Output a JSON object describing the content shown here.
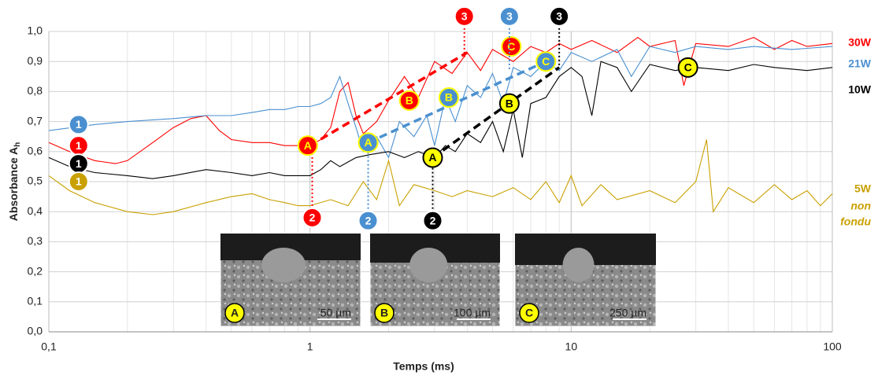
{
  "chart_data": {
    "type": "line",
    "xlabel": "Temps (ms)",
    "ylabel": {
      "text": "Absorbance A",
      "subscript": "h"
    },
    "log_x": true,
    "grid": true,
    "xlim": [
      0.1,
      100
    ],
    "ylim": [
      0,
      1
    ],
    "xticks": [
      {
        "value": 0.1,
        "label": "0,1"
      },
      1,
      10,
      100
    ],
    "x_minor_ticks": [
      0.2,
      0.3,
      0.4,
      0.5,
      0.6,
      0.7,
      0.8,
      0.9,
      2,
      3,
      4,
      5,
      6,
      7,
      8,
      9,
      20,
      30,
      40,
      50,
      60,
      70,
      80,
      90
    ],
    "yticks": [
      {
        "value": 0,
        "label": "0,0"
      },
      {
        "value": 0.1,
        "label": "0,1"
      },
      {
        "value": 0.2,
        "label": "0,2"
      },
      {
        "value": 0.3,
        "label": "0,3"
      },
      {
        "value": 0.4,
        "label": "0,4"
      },
      {
        "value": 0.5,
        "label": "0,5"
      },
      {
        "value": 0.6,
        "label": "0,6"
      },
      {
        "value": 0.7,
        "label": "0,7"
      },
      {
        "value": 0.8,
        "label": "0,8"
      },
      {
        "value": 0.9,
        "label": "0,9"
      },
      {
        "value": 1,
        "label": "1,0"
      }
    ],
    "series": [
      {
        "name": "30W",
        "color": "#ff0000",
        "x": [
          0.1,
          0.12,
          0.15,
          0.18,
          0.2,
          0.25,
          0.3,
          0.35,
          0.4,
          0.45,
          0.5,
          0.6,
          0.7,
          0.8,
          0.9,
          1.0,
          1.1,
          1.2,
          1.3,
          1.4,
          1.5,
          1.6,
          1.8,
          2.0,
          2.3,
          2.6,
          3.0,
          3.5,
          4.0,
          4.5,
          5.0,
          6,
          7,
          8,
          9,
          10,
          12,
          15,
          18,
          20,
          25,
          27,
          30,
          40,
          50,
          60,
          70,
          80,
          100
        ],
        "values": [
          0.63,
          0.6,
          0.57,
          0.56,
          0.57,
          0.63,
          0.68,
          0.71,
          0.72,
          0.67,
          0.64,
          0.63,
          0.63,
          0.62,
          0.62,
          0.62,
          0.64,
          0.68,
          0.8,
          0.83,
          0.72,
          0.66,
          0.7,
          0.77,
          0.85,
          0.78,
          0.9,
          0.86,
          0.93,
          0.87,
          0.94,
          0.9,
          0.95,
          0.93,
          0.96,
          0.94,
          0.97,
          0.93,
          0.98,
          0.95,
          0.97,
          0.82,
          0.96,
          0.95,
          0.98,
          0.94,
          0.97,
          0.95,
          0.96
        ],
        "trend_x": [
          1.0,
          4.0
        ],
        "trend_y": [
          0.62,
          0.93
        ]
      },
      {
        "name": "21W",
        "color": "#4a90d0",
        "x": [
          0.1,
          0.15,
          0.2,
          0.3,
          0.4,
          0.5,
          0.6,
          0.7,
          0.8,
          0.9,
          1.0,
          1.1,
          1.2,
          1.3,
          1.4,
          1.5,
          1.6,
          1.7,
          1.8,
          2.0,
          2.2,
          2.5,
          2.8,
          3.0,
          3.3,
          3.6,
          4.0,
          4.5,
          5,
          5.5,
          6,
          7,
          8,
          9,
          10,
          12,
          15,
          17,
          20,
          25,
          30,
          40,
          50,
          70,
          100
        ],
        "values": [
          0.67,
          0.69,
          0.7,
          0.71,
          0.72,
          0.72,
          0.73,
          0.74,
          0.74,
          0.75,
          0.75,
          0.76,
          0.78,
          0.85,
          0.76,
          0.68,
          0.6,
          0.62,
          0.65,
          0.58,
          0.7,
          0.65,
          0.72,
          0.62,
          0.78,
          0.7,
          0.82,
          0.78,
          0.86,
          0.76,
          0.88,
          0.85,
          0.9,
          0.87,
          0.93,
          0.9,
          0.94,
          0.85,
          0.95,
          0.93,
          0.95,
          0.94,
          0.95,
          0.94,
          0.95
        ],
        "trend_x": [
          1.67,
          8
        ],
        "trend_y": [
          0.63,
          0.9
        ]
      },
      {
        "name": "10W",
        "color": "#000000",
        "x": [
          0.1,
          0.12,
          0.15,
          0.2,
          0.25,
          0.3,
          0.4,
          0.5,
          0.6,
          0.7,
          0.8,
          0.9,
          1.0,
          1.1,
          1.2,
          1.3,
          1.5,
          1.7,
          2.0,
          2.3,
          2.6,
          3,
          3.3,
          3.6,
          4,
          4.5,
          5,
          5.5,
          6,
          6.5,
          7,
          8,
          9,
          10,
          11,
          12,
          13,
          15,
          17,
          20,
          25,
          30,
          40,
          50,
          60,
          80,
          100
        ],
        "values": [
          0.58,
          0.55,
          0.53,
          0.52,
          0.51,
          0.52,
          0.54,
          0.53,
          0.52,
          0.53,
          0.52,
          0.52,
          0.52,
          0.54,
          0.57,
          0.55,
          0.58,
          0.59,
          0.6,
          0.58,
          0.6,
          0.58,
          0.62,
          0.6,
          0.66,
          0.63,
          0.7,
          0.6,
          0.74,
          0.58,
          0.76,
          0.78,
          0.85,
          0.88,
          0.85,
          0.72,
          0.9,
          0.88,
          0.8,
          0.89,
          0.87,
          0.88,
          0.87,
          0.89,
          0.88,
          0.87,
          0.88
        ],
        "trend_x": [
          2.95,
          9
        ],
        "trend_y": [
          0.58,
          0.88
        ]
      },
      {
        "name": "5W",
        "color": "#c9a000",
        "note": [
          "non",
          "fondu"
        ],
        "x": [
          0.1,
          0.12,
          0.15,
          0.2,
          0.25,
          0.3,
          0.4,
          0.5,
          0.6,
          0.7,
          0.8,
          0.9,
          1.0,
          1.2,
          1.4,
          1.6,
          1.8,
          2.0,
          2.2,
          2.5,
          3,
          3.5,
          4,
          5,
          6,
          7,
          8,
          9,
          10,
          11,
          13,
          15,
          20,
          25,
          30,
          33,
          35,
          40,
          50,
          60,
          70,
          80,
          90,
          100
        ],
        "values": [
          0.52,
          0.47,
          0.43,
          0.4,
          0.39,
          0.4,
          0.43,
          0.45,
          0.46,
          0.44,
          0.43,
          0.42,
          0.42,
          0.44,
          0.42,
          0.5,
          0.44,
          0.57,
          0.42,
          0.49,
          0.47,
          0.45,
          0.47,
          0.45,
          0.48,
          0.44,
          0.5,
          0.43,
          0.52,
          0.42,
          0.49,
          0.44,
          0.47,
          0.43,
          0.5,
          0.64,
          0.4,
          0.48,
          0.43,
          0.49,
          0.44,
          0.47,
          0.42,
          0.46
        ]
      }
    ],
    "markers": [
      {
        "label": "1",
        "series": 0,
        "x": 0.13,
        "y": 0.62
      },
      {
        "label": "2",
        "series": 0,
        "x": 1.02,
        "y": 0.38,
        "stem": 0.6
      },
      {
        "label": "3",
        "series": 0,
        "x": 3.9,
        "y": 1.05,
        "stem": 0.91
      },
      {
        "label": "A",
        "series": 0,
        "x": 0.98,
        "y": 0.62
      },
      {
        "label": "B",
        "series": 0,
        "x": 2.4,
        "y": 0.77
      },
      {
        "label": "C",
        "series": 0,
        "x": 5.9,
        "y": 0.95
      },
      {
        "label": "1",
        "series": 1,
        "x": 0.13,
        "y": 0.69
      },
      {
        "label": "2",
        "series": 1,
        "x": 1.67,
        "y": 0.37,
        "stem": 0.62
      },
      {
        "label": "3",
        "series": 1,
        "x": 5.8,
        "y": 1.05,
        "stem": 0.87
      },
      {
        "label": "A",
        "series": 1,
        "x": 1.67,
        "y": 0.63
      },
      {
        "label": "B",
        "series": 1,
        "x": 3.4,
        "y": 0.78
      },
      {
        "label": "C",
        "series": 1,
        "x": 8,
        "y": 0.9
      },
      {
        "label": "1",
        "series": 2,
        "x": 0.13,
        "y": 0.56
      },
      {
        "label": "2",
        "series": 2,
        "x": 2.95,
        "y": 0.37,
        "stem": 0.58
      },
      {
        "label": "3",
        "series": 2,
        "x": 9,
        "y": 1.05,
        "stem": 0.88
      },
      {
        "label": "A",
        "series": 2,
        "x": 2.95,
        "y": 0.58
      },
      {
        "label": "B",
        "series": 2,
        "x": 5.8,
        "y": 0.76
      },
      {
        "label": "C",
        "series": 2,
        "x": 28,
        "y": 0.88
      },
      {
        "label": "1",
        "series": 3,
        "x": 0.13,
        "y": 0.5
      }
    ],
    "insets": [
      {
        "letter": "A",
        "scale": "50 µm"
      },
      {
        "letter": "B",
        "scale": "100 µm"
      },
      {
        "letter": "C",
        "scale": "250 µm"
      }
    ]
  }
}
